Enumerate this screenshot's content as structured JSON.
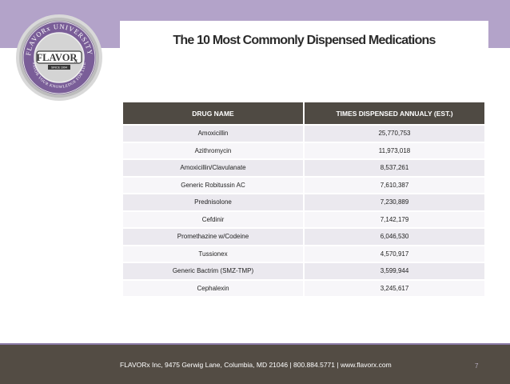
{
  "slide": {
    "title": "The 10 Most Commonly Dispensed Medications",
    "page_number": "7"
  },
  "logo": {
    "top_text": "FLAVORx UNIVERSITY",
    "brand": "FLAVOR",
    "brand_suffix": "x",
    "since": "SINCE 1994",
    "bottom_text": "SAVOR YOUR KNOWLEDGE FOR LIFE",
    "colors": {
      "ring": "#b9b9b9",
      "inner": "#7a5e98",
      "brand": "#3a3a3a"
    }
  },
  "table": {
    "headers": [
      "DRUG NAME",
      "TIMES DISPENSED ANNUALY (EST.)"
    ],
    "rows": [
      [
        "Amoxicillin",
        "25,770,753"
      ],
      [
        "Azithromycin",
        "11,973,018"
      ],
      [
        "Amoxicillin/Clavulanate",
        "8,537,261"
      ],
      [
        "Generic Robitussin AC",
        "7,610,387"
      ],
      [
        "Prednisolone",
        "7,230,889"
      ],
      [
        "Cefdinir",
        "7,142,179"
      ],
      [
        "Promethazine w/Codeine",
        "6,046,530"
      ],
      [
        "Tussionex",
        "4,570,917"
      ],
      [
        "Generic Bactrim (SMZ-TMP)",
        "3,599,944"
      ],
      [
        "Cephalexin",
        "3,245,617"
      ]
    ]
  },
  "footer": {
    "text": "FLAVORx Inc, 9475 Gerwig Lane, Columbia, MD 21046  |  800.884.5771  |  www.flavorx.com"
  },
  "colors": {
    "top_band": "#b3a3c9",
    "header_bg": "#4f4a43",
    "row_odd": "#ebe9ef",
    "row_even": "#f7f6f9",
    "footer_bg": "#534c44"
  }
}
